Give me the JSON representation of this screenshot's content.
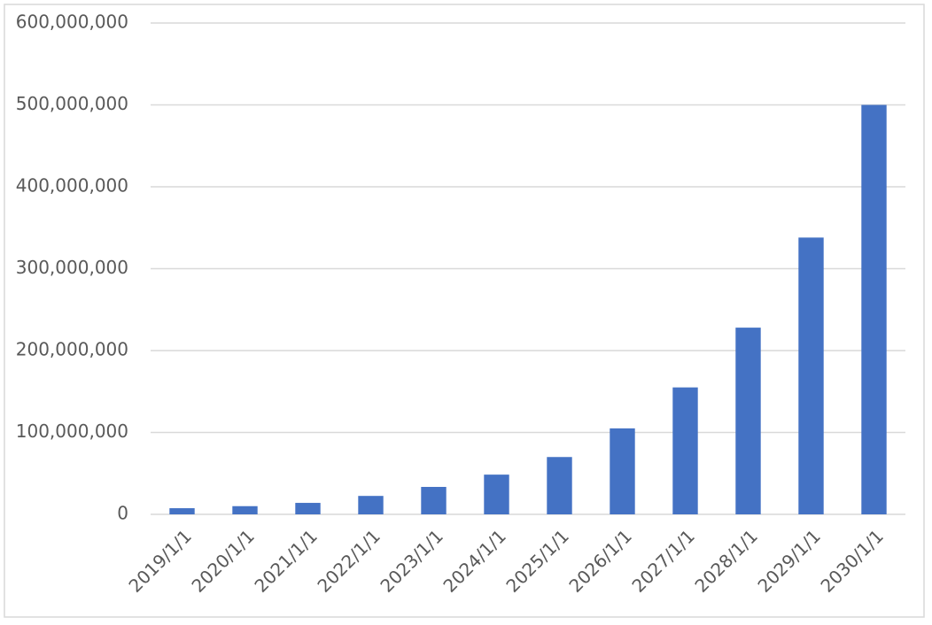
{
  "chart_data": {
    "type": "bar",
    "categories": [
      "2019/1/1",
      "2020/1/1",
      "2021/1/1",
      "2022/1/1",
      "2023/1/1",
      "2024/1/1",
      "2025/1/1",
      "2026/1/1",
      "2027/1/1",
      "2028/1/1",
      "2029/1/1",
      "2030/1/1"
    ],
    "values": [
      7500000,
      10000000,
      14000000,
      22500000,
      33500000,
      48500000,
      70000000,
      105000000,
      155000000,
      228000000,
      338000000,
      500000000
    ],
    "color": "#4472c4",
    "ylim": [
      0,
      600000000
    ],
    "yticks": [
      0,
      {
        "value": 100000000,
        "label": "100,000,000"
      },
      {
        "value": 200000000,
        "label": "200,000,000"
      },
      {
        "value": 300000000,
        "label": "300,000,000"
      },
      {
        "value": 400000000,
        "label": "400,000,000"
      },
      {
        "value": 500000000,
        "label": "500,000,000"
      },
      {
        "value": 600000000,
        "label": "600,000,000"
      }
    ],
    "grid": true
  }
}
